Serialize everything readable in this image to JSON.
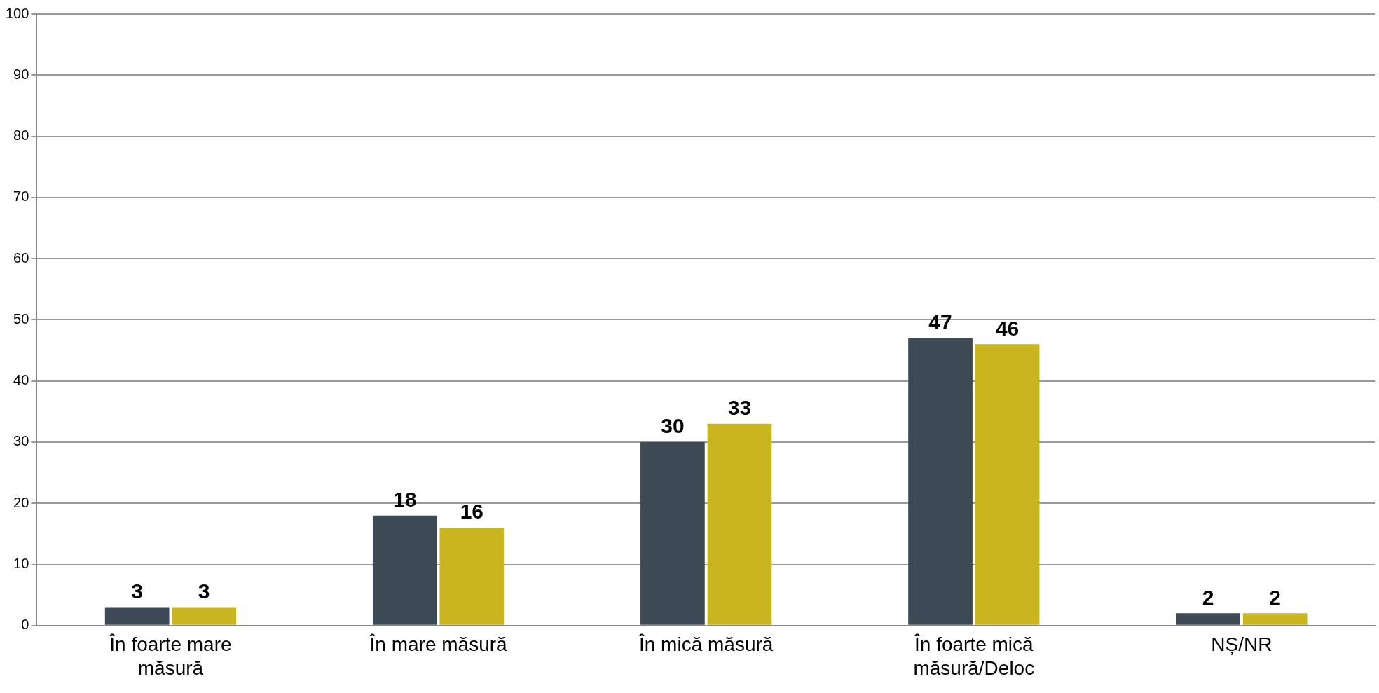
{
  "chart_data": {
    "type": "bar",
    "categories": [
      "În foarte mare măsură",
      "În mare măsură",
      "În mică măsură",
      "În foarte mică măsură/Deloc",
      "NȘ/NR"
    ],
    "series": [
      {
        "color": "#3d4a56",
        "values": [
          3,
          18,
          30,
          47,
          2
        ]
      },
      {
        "color": "#c9b520",
        "values": [
          3,
          16,
          33,
          46,
          2
        ]
      }
    ],
    "ylim": [
      0,
      100
    ],
    "yticks": [
      0,
      10,
      20,
      30,
      40,
      50,
      60,
      70,
      80,
      90,
      100
    ],
    "grid": "y",
    "data_labels": true,
    "legend": false
  }
}
